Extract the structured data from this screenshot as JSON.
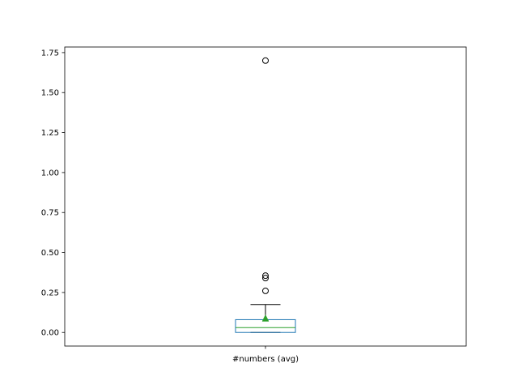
{
  "chart_data": {
    "type": "box",
    "categories": [
      "#numbers (avg)"
    ],
    "ylim": [
      -0.085,
      1.785
    ],
    "yticks": [
      0.0,
      0.25,
      0.5,
      0.75,
      1.0,
      1.25,
      1.5,
      1.75
    ],
    "ytick_labels": [
      "0.00",
      "0.25",
      "0.50",
      "0.75",
      "1.00",
      "1.25",
      "1.50",
      "1.75"
    ],
    "grid": false,
    "series": [
      {
        "whisker_low": 0.0,
        "q1": 0.0,
        "median": 0.03,
        "q3": 0.08,
        "whisker_high": 0.175,
        "mean": 0.085,
        "outliers": [
          0.26,
          0.34,
          0.355,
          1.7
        ]
      }
    ],
    "colors": {
      "box": "#1f77b4",
      "median": "#2ca02c",
      "mean_marker": "#2ca02c",
      "whisker": "#000000",
      "outlier": "#000000"
    }
  }
}
